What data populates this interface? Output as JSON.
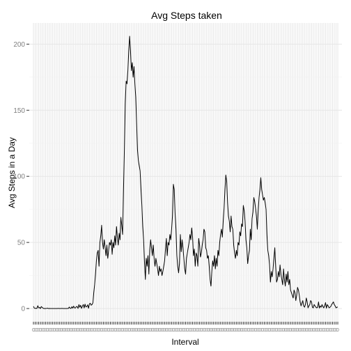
{
  "chart_data": {
    "type": "line",
    "title": "Avg Steps taken",
    "xlabel": "Interval",
    "ylabel": "Avg Steps in a Day",
    "yticks": [
      0,
      50,
      100,
      150,
      200
    ],
    "ylim": [
      -10,
      216
    ],
    "x_tick_every": 2,
    "grid": true,
    "colors": {
      "line": "#000000",
      "panel": "#ffffff",
      "grid_major": "#e6e6e6",
      "grid_minor": "#f2f2f2"
    },
    "series": [
      {
        "values": [
          1.7,
          0.3,
          0.1,
          0.2,
          0.1,
          2.1,
          0.5,
          0.8,
          0,
          1.5,
          0.8,
          0.3,
          0,
          0.1,
          0,
          0.1,
          0.3,
          0,
          0.1,
          0,
          0,
          0,
          0,
          0,
          0,
          0,
          0,
          0,
          0.1,
          0.1,
          0,
          0,
          0.1,
          0.1,
          0,
          0,
          0,
          0,
          0,
          0.1,
          0.1,
          1.1,
          0.2,
          0.1,
          1.4,
          0.3,
          1.8,
          0.5,
          0.4,
          1.4,
          1.5,
          0.1,
          3.0,
          1.0,
          2.5,
          0.1,
          1.7,
          3.0,
          0.4,
          3.3,
          1.2,
          1.5,
          2.8,
          0.2,
          3.5,
          4.0,
          2.5,
          3.0,
          4.3,
          12.0,
          18.0,
          26.0,
          36.0,
          42.0,
          44.0,
          32.0,
          50.0,
          55.0,
          63.0,
          50.0,
          45.0,
          52.0,
          46.0,
          40.0,
          48.0,
          38.0,
          44.0,
          50.0,
          48.0,
          52.0,
          41.0,
          50.0,
          46.0,
          55.0,
          48.0,
          62.0,
          54.0,
          48.0,
          57.0,
          52.0,
          69.0,
          63.0,
          56.0,
          90.0,
          120.0,
          155.0,
          172.0,
          170.0,
          180.0,
          195.0,
          206.0,
          195.0,
          180.0,
          186.0,
          175.0,
          183.0,
          170.0,
          160.0,
          140.0,
          120.0,
          112.0,
          108.0,
          104.0,
          90.0,
          78.0,
          62.0,
          52.0,
          35.0,
          22.0,
          38.0,
          32.0,
          40.0,
          26.0,
          44.0,
          52.0,
          46.0,
          40.0,
          48.0,
          38.0,
          32.0,
          38.0,
          34.0,
          30.0,
          25.0,
          32.0,
          28.0,
          30.0,
          25.0,
          28.0,
          32.0,
          36.0,
          45.0,
          53.0,
          40.0,
          50.0,
          48.0,
          56.0,
          52.0,
          60.0,
          70.0,
          94.0,
          90.0,
          72.0,
          60.0,
          40.0,
          32.0,
          27.0,
          34.0,
          56.0,
          43.0,
          52.0,
          46.0,
          38.0,
          30.0,
          26.0,
          38.0,
          42.0,
          46.0,
          50.0,
          56.0,
          52.0,
          61.0,
          54.0,
          40.0,
          45.0,
          32.0,
          42.0,
          40.0,
          32.0,
          53.0,
          48.0,
          39.0,
          42.0,
          48.0,
          52.0,
          60.0,
          58.0,
          46.0,
          44.0,
          38.0,
          40.0,
          32.0,
          22.0,
          17.0,
          28.0,
          36.0,
          32.0,
          40.0,
          30.0,
          38.0,
          32.0,
          44.0,
          40.0,
          50.0,
          56.0,
          60.0,
          54.0,
          66.0,
          76.0,
          90.0,
          101.0,
          96.0,
          80.0,
          70.0,
          66.0,
          58.0,
          70.0,
          62.0,
          60.0,
          48.0,
          42.0,
          38.0,
          44.0,
          40.0,
          50.0,
          48.0,
          58.0,
          55.0,
          64.0,
          62.0,
          78.0,
          74.0,
          66.0,
          52.0,
          46.0,
          34.0,
          40.0,
          44.0,
          60.0,
          52.0,
          68.0,
          73.0,
          84.0,
          81.0,
          76.0,
          70.0,
          60.0,
          74.0,
          84.0,
          90.0,
          99.0,
          90.0,
          86.0,
          82.0,
          84.0,
          80.0,
          75.0,
          56.0,
          44.0,
          40.0,
          33.0,
          20.0,
          28.0,
          24.0,
          30.0,
          38.0,
          46.0,
          32.0,
          20.0,
          22.0,
          28.0,
          24.0,
          33.0,
          26.0,
          22.0,
          18.0,
          30.0,
          22.0,
          17.0,
          26.0,
          20.0,
          28.0,
          18.0,
          22.0,
          14.0,
          12.0,
          10.0,
          8.0,
          14.0,
          12.0,
          6.0,
          10.0,
          16.0,
          14.0,
          10.0,
          5.0,
          2.0,
          4.0,
          6.0,
          2.0,
          1.0,
          3.0,
          8.0,
          5.0,
          0.5,
          2.0,
          3.0,
          6.0,
          5.0,
          1.0,
          0.5,
          3.0,
          2.0,
          1.0,
          0.5,
          1.0,
          5.0,
          0.4,
          2.0,
          1.0,
          3.0,
          1.5,
          0.5,
          2.0,
          4.5,
          0.3,
          3.0,
          2.0,
          0.5,
          1.0,
          1.5,
          3.0,
          4.0,
          5.0,
          3.0,
          2.0,
          0.5,
          1.0,
          1.1
        ]
      }
    ]
  }
}
